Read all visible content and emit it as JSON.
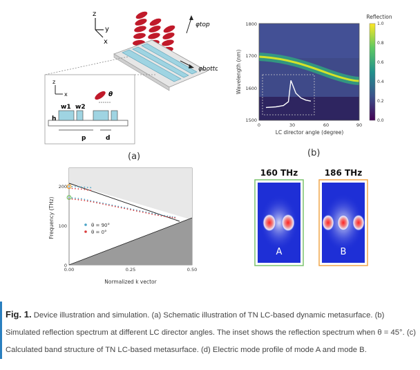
{
  "panel_a": {
    "phi_top": "φtop",
    "phi_bottom": "φbottom",
    "axes": {
      "z": "z",
      "y": "y",
      "x": "x"
    },
    "inset": {
      "z": "z",
      "x": "x",
      "theta": "θ",
      "w1": "w1",
      "w2": "w2",
      "h": "h",
      "p": "p",
      "d": "d"
    },
    "label": "(a)"
  },
  "panel_b": {
    "label": "(b)",
    "colorbar_title": "Reflection",
    "colorbar_ticks": [
      "1.0",
      "0.8",
      "0.6",
      "0.4",
      "0.2",
      "0.0"
    ],
    "xlabel": "LC director angle (degree)",
    "ylabel": "Wavelength (nm)",
    "xticks": [
      "0",
      "30",
      "60",
      "90"
    ],
    "yticks": [
      "1800",
      "1700",
      "1600",
      "1500"
    ]
  },
  "panel_c": {
    "xlabel": "Normalized k vector",
    "ylabel": "Frequency (THz)",
    "xticks": [
      "0.00",
      "0.25",
      "0.50"
    ],
    "yticks": [
      "200",
      "100",
      "0"
    ],
    "legend": [
      "θ = 90°",
      "θ = 0°"
    ]
  },
  "panel_d": {
    "left_title": "160 THz",
    "right_title": "186 THz",
    "mode_a": "A",
    "mode_b": "B"
  },
  "caption": {
    "label": "Fig. 1.",
    "text": " Device illustration and simulation. (a) Schematic illustration of TN LC-based dynamic metasurface. (b) Simulated reflection spectrum at different LC director angles. The inset shows the reflection spectrum when θ = 45°. (c) Calculated band structure of TN LC-based metasurface. (d) Electric mode profile of mode A and mode B."
  },
  "chart_data": [
    {
      "type": "heatmap",
      "xlabel": "LC director angle (degree)",
      "ylabel": "Wavelength (nm)",
      "xlim": [
        0,
        90
      ],
      "ylim": [
        1500,
        1800
      ],
      "colorbar": {
        "title": "Reflection",
        "range": [
          0,
          1
        ]
      },
      "resonance_ridge": {
        "x": [
          0,
          15,
          30,
          45,
          60,
          75,
          90
        ],
        "y": [
          1685,
          1680,
          1668,
          1652,
          1636,
          1626,
          1620
        ]
      },
      "inset_x45": {
        "x": [
          0,
          20,
          35,
          45,
          50,
          60,
          70,
          80,
          90
        ],
        "y": [
          0.1,
          0.12,
          0.16,
          0.28,
          0.95,
          0.55,
          0.4,
          0.33,
          0.3
        ]
      }
    },
    {
      "type": "scatter",
      "xlabel": "Normalized k vector",
      "ylabel": "Frequency (THz)",
      "xlim": [
        0,
        0.5
      ],
      "ylim": [
        0,
        230
      ],
      "series": [
        {
          "name": "θ = 90°",
          "x": [
            0,
            0.05,
            0.1,
            0.15,
            0.2,
            0.25,
            0.3,
            0.35,
            0.4,
            0.44
          ],
          "y": [
            160,
            157,
            151,
            145,
            139,
            133,
            127,
            121,
            116,
            112
          ]
        },
        {
          "name": "θ = 0°",
          "x": [
            0,
            0.05,
            0.1,
            0.15,
            0.2,
            0.25,
            0.3,
            0.35,
            0.4,
            0.44
          ],
          "y": [
            157,
            154,
            149,
            143,
            137,
            131,
            125,
            119,
            114,
            111
          ]
        },
        {
          "name": "",
          "x": [
            0,
            0.05,
            0.1
          ],
          "y": [
            186,
            185,
            183
          ]
        },
        {
          "name": "",
          "x": [
            0,
            0.05,
            0.1
          ],
          "y": [
            182,
            180,
            176
          ]
        }
      ]
    }
  ]
}
